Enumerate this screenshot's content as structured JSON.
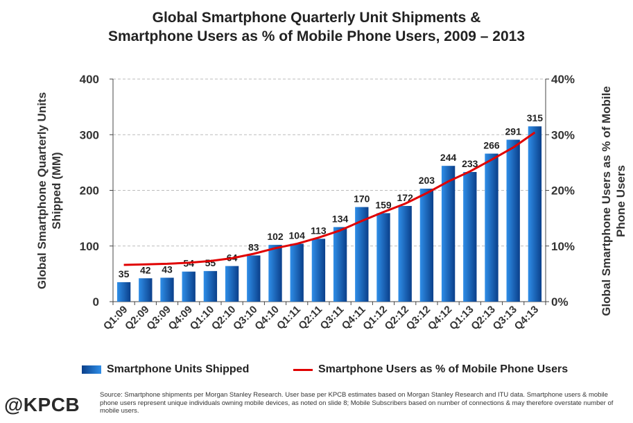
{
  "header": {
    "title_line1": "Global Smartphone Quarterly Unit Shipments &",
    "title_line2": "Smartphone Users as % of Mobile Phone Users, 2009 – 2013"
  },
  "chart_data": {
    "type": "bar",
    "categories": [
      "Q1:09",
      "Q2:09",
      "Q3:09",
      "Q4:09",
      "Q1:10",
      "Q2:10",
      "Q3:10",
      "Q4:10",
      "Q1:11",
      "Q2:11",
      "Q3:11",
      "Q4:11",
      "Q1:12",
      "Q2:12",
      "Q3:12",
      "Q4:12",
      "Q1:13",
      "Q2:13",
      "Q3:13",
      "Q4:13"
    ],
    "series": [
      {
        "name": "Smartphone Units Shipped",
        "type": "bar",
        "axis": "left",
        "values": [
          35,
          42,
          43,
          54,
          55,
          64,
          83,
          102,
          104,
          113,
          134,
          170,
          159,
          172,
          203,
          244,
          233,
          266,
          291,
          315
        ]
      },
      {
        "name": "Smartphone Users as % of Mobile Phone Users",
        "type": "line",
        "axis": "right",
        "values": [
          6.6,
          6.7,
          6.8,
          7.0,
          7.3,
          7.8,
          8.6,
          9.6,
          10.4,
          11.5,
          12.8,
          14.5,
          16.1,
          17.6,
          19.5,
          21.6,
          23.4,
          25.5,
          27.7,
          30.4
        ]
      }
    ],
    "ylabel": "Global Smartphone Quarterly Units Shipped (MM)",
    "ylabel_right": "Global Smartphone Users as % of Mobile Phone Users",
    "ylim": [
      0,
      400
    ],
    "ylim_right": [
      0,
      40
    ],
    "yticks": [
      "0",
      "100",
      "200",
      "300",
      "400"
    ],
    "yticks_right": [
      "0%",
      "10%",
      "20%",
      "30%",
      "40%"
    ],
    "grid": true,
    "legend": "bottom",
    "colors": {
      "bar_dark": "#0a3f8a",
      "bar_light": "#2f8ee8",
      "line": "#e00000",
      "grid": "#bbbbbb"
    }
  },
  "footer": {
    "logo": "@KPCB",
    "source": "Source: Smartphone shipments per Morgan Stanley Research. User base per KPCB estimates based on Morgan Stanley Research and ITU data. Smartphone users & mobile phone users represent unique individuals owning mobile devices, as noted on slide 8; Mobile Subscribers based on number of connections & may therefore overstate number of mobile users."
  }
}
